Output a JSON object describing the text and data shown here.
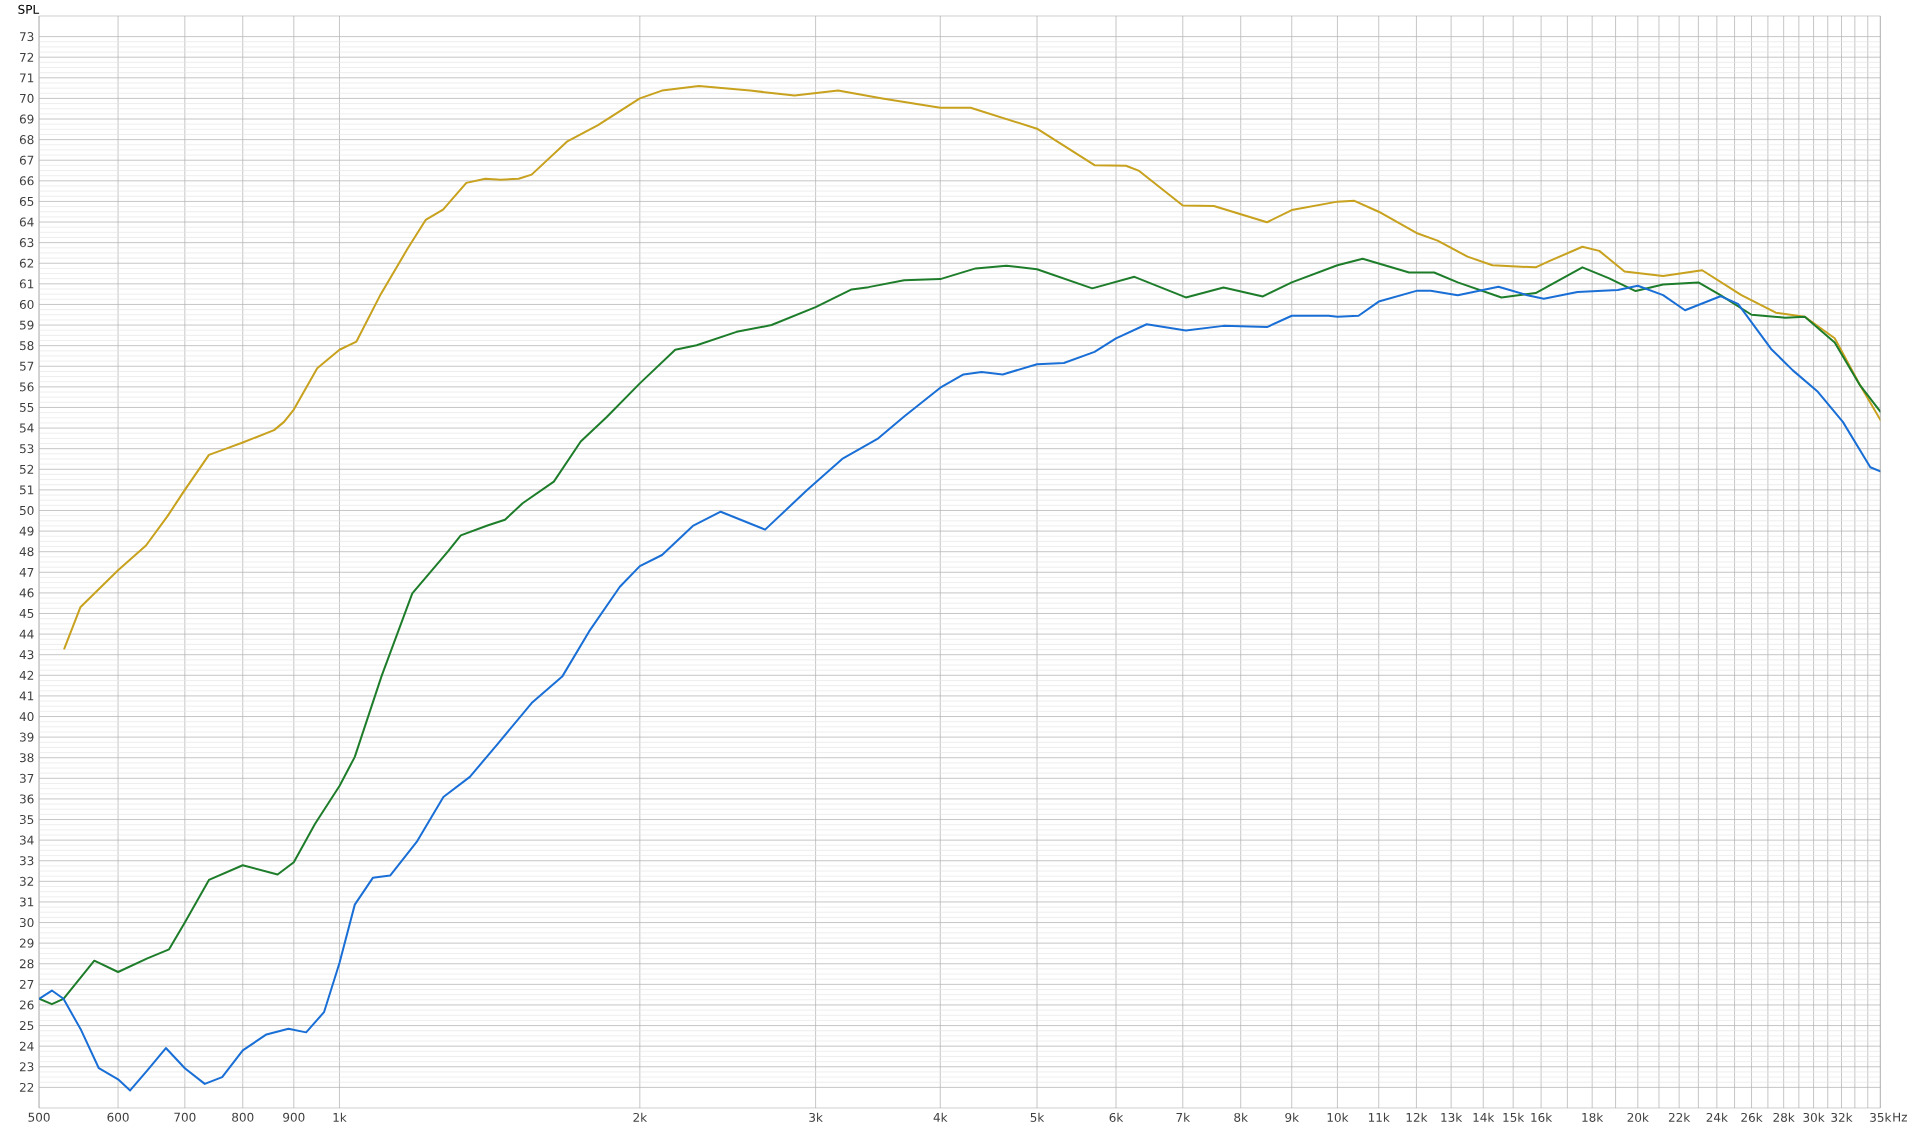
{
  "chart_data": {
    "type": "line",
    "ylabel": "SPL",
    "log": "x",
    "grid": true,
    "marker": "none",
    "line_style": "solid",
    "xlim": [
      500,
      35000
    ],
    "ylim": [
      21,
      74
    ],
    "xticks": [
      {
        "value": 500,
        "label": "500"
      },
      {
        "value": 600,
        "label": "600"
      },
      {
        "value": 700,
        "label": "700"
      },
      {
        "value": 800,
        "label": "800"
      },
      {
        "value": 900,
        "label": "900"
      },
      {
        "value": 1000,
        "label": "1k"
      },
      {
        "value": 2000,
        "label": "2k"
      },
      {
        "value": 3000,
        "label": "3k"
      },
      {
        "value": 4000,
        "label": "4k"
      },
      {
        "value": 5000,
        "label": "5k"
      },
      {
        "value": 6000,
        "label": "6k"
      },
      {
        "value": 7000,
        "label": "7k"
      },
      {
        "value": 8000,
        "label": "8k"
      },
      {
        "value": 9000,
        "label": "9k"
      },
      {
        "value": 10000,
        "label": "10k"
      },
      {
        "value": 11000,
        "label": "11k"
      },
      {
        "value": 12000,
        "label": "12k"
      },
      {
        "value": 13000,
        "label": "13k"
      },
      {
        "value": 14000,
        "label": "14k"
      },
      {
        "value": 15000,
        "label": "15k"
      },
      {
        "value": 16000,
        "label": "16k"
      },
      {
        "value": 17000,
        "label": null
      },
      {
        "value": 18000,
        "label": "18k"
      },
      {
        "value": 19000,
        "label": null
      },
      {
        "value": 20000,
        "label": "20k"
      },
      {
        "value": 21000,
        "label": null
      },
      {
        "value": 22000,
        "label": "22k"
      },
      {
        "value": 23000,
        "label": null
      },
      {
        "value": 24000,
        "label": "24k"
      },
      {
        "value": 25000,
        "label": null
      },
      {
        "value": 26000,
        "label": "26k"
      },
      {
        "value": 27000,
        "label": null
      },
      {
        "value": 28000,
        "label": "28k"
      },
      {
        "value": 29000,
        "label": null
      },
      {
        "value": 30000,
        "label": "30k"
      },
      {
        "value": 31000,
        "label": null
      },
      {
        "value": 32000,
        "label": "32k"
      },
      {
        "value": 33000,
        "label": null
      },
      {
        "value": 34000,
        "label": null
      },
      {
        "value": 35000,
        "label": "35k"
      }
    ],
    "xlabel": "Hz",
    "yticks": [
      22,
      23,
      24,
      25,
      26,
      27,
      28,
      29,
      30,
      31,
      32,
      33,
      34,
      35,
      36,
      37,
      38,
      39,
      40,
      41,
      42,
      43,
      44,
      45,
      46,
      47,
      48,
      49,
      50,
      51,
      52,
      53,
      54,
      55,
      56,
      57,
      58,
      59,
      60,
      61,
      62,
      63,
      64,
      65,
      66,
      67,
      68,
      69,
      70,
      71,
      72,
      73
    ],
    "series": [
      {
        "color": "#c8a21e",
        "x": [
          530,
          550,
          600,
          640,
          672,
          700,
          740,
          770,
          800,
          860,
          880,
          900,
          950,
          1000,
          1040,
          1100,
          1170,
          1220,
          1270,
          1340,
          1400,
          1451,
          1512,
          1558,
          1690,
          1816,
          2000,
          2105,
          2292,
          2579,
          2858,
          3160,
          3500,
          4000,
          4290,
          5000,
          5710,
          6140,
          6330,
          7000,
          7520,
          8500,
          9000,
          10000,
          10400,
          11000,
          12000,
          12600,
          13500,
          14300,
          15800,
          16300,
          17600,
          18300,
          19400,
          21200,
          23200,
          25400,
          27500,
          29400,
          31500,
          33400,
          35000
        ],
        "values": [
          43.3,
          45.3,
          47.1,
          48.3,
          49.7,
          51.0,
          52.7,
          53.0,
          53.3,
          53.9,
          54.3,
          54.9,
          56.9,
          57.8,
          58.2,
          60.5,
          62.7,
          64.1,
          64.6,
          65.9,
          66.1,
          66.05,
          66.1,
          66.3,
          67.9,
          68.7,
          70.0,
          70.38,
          70.6,
          70.38,
          70.14,
          70.38,
          70.0,
          69.55,
          69.55,
          68.53,
          66.76,
          66.73,
          66.48,
          64.8,
          64.78,
          63.99,
          64.58,
          64.99,
          65.03,
          64.5,
          63.47,
          63.1,
          62.32,
          61.9,
          61.8,
          62.1,
          62.8,
          62.6,
          61.6,
          61.38,
          61.66,
          60.45,
          59.6,
          59.4,
          58.36,
          56.08,
          54.4
        ]
      },
      {
        "color": "#1e7d2a",
        "x": [
          500,
          515,
          529,
          568,
          600,
          642,
          675,
          700,
          740,
          800,
          867,
          900,
          945,
          1000,
          1036,
          1102,
          1183,
          1284,
          1323,
          1407,
          1465,
          1526,
          1640,
          1745,
          1853,
          2000,
          2170,
          2280,
          2500,
          2710,
          3000,
          3260,
          3390,
          3680,
          4000,
          4340,
          4660,
          5000,
          5680,
          6260,
          7050,
          7690,
          8420,
          9000,
          10000,
          10600,
          11800,
          12500,
          13200,
          14600,
          15800,
          17600,
          18700,
          19900,
          21200,
          23000,
          24200,
          26000,
          28100,
          29400,
          31500,
          33400,
          35000
        ],
        "values": [
          26.3,
          26.04,
          26.3,
          28.15,
          27.6,
          28.26,
          28.7,
          30.0,
          32.07,
          32.78,
          32.33,
          32.93,
          34.78,
          36.63,
          38.04,
          41.96,
          45.98,
          48.0,
          48.79,
          49.27,
          49.55,
          50.35,
          51.4,
          53.35,
          54.54,
          56.17,
          57.8,
          58.02,
          58.67,
          59.0,
          59.87,
          60.73,
          60.84,
          61.17,
          61.23,
          61.75,
          61.88,
          61.71,
          60.78,
          61.34,
          60.34,
          60.82,
          60.39,
          61.07,
          61.9,
          62.22,
          61.55,
          61.55,
          61.07,
          60.34,
          60.55,
          61.8,
          61.28,
          60.65,
          60.97,
          61.07,
          60.45,
          59.5,
          59.36,
          59.4,
          58.15,
          56.07,
          54.8
        ]
      },
      {
        "color": "#1a6fd6",
        "x": [
          500,
          515,
          529,
          551,
          574,
          600,
          617,
          642,
          670,
          700,
          733,
          763,
          800,
          845,
          889,
          926,
          965,
          1000,
          1036,
          1080,
          1124,
          1195,
          1271,
          1351,
          1436,
          1558,
          1673,
          1779,
          1910,
          2000,
          2105,
          2260,
          2410,
          2670,
          2940,
          3190,
          3460,
          3680,
          4000,
          4220,
          4400,
          4620,
          5000,
          5320,
          5710,
          6000,
          6440,
          7050,
          7690,
          8500,
          9000,
          9800,
          10000,
          10500,
          11000,
          12000,
          12400,
          13200,
          14500,
          15500,
          16100,
          17400,
          19100,
          20000,
          21200,
          22300,
          24200,
          25200,
          27200,
          28600,
          30300,
          32100,
          34200,
          35000
        ],
        "values": [
          26.3,
          26.7,
          26.3,
          24.78,
          22.93,
          22.39,
          21.85,
          22.83,
          23.91,
          22.93,
          22.17,
          22.5,
          23.8,
          24.57,
          24.85,
          24.67,
          25.65,
          28.04,
          30.87,
          32.17,
          32.28,
          33.91,
          36.09,
          37.07,
          38.59,
          40.65,
          41.96,
          44.13,
          46.3,
          47.3,
          47.84,
          49.25,
          49.94,
          49.07,
          50.98,
          52.5,
          53.47,
          54.56,
          55.96,
          56.6,
          56.72,
          56.6,
          57.1,
          57.16,
          57.7,
          58.35,
          59.04,
          58.74,
          58.96,
          58.9,
          59.45,
          59.45,
          59.4,
          59.45,
          60.14,
          60.66,
          60.66,
          60.45,
          60.86,
          60.45,
          60.28,
          60.6,
          60.7,
          60.91,
          60.45,
          59.72,
          60.4,
          60.03,
          57.84,
          56.8,
          55.76,
          54.3,
          52.1,
          51.9
        ]
      }
    ]
  }
}
